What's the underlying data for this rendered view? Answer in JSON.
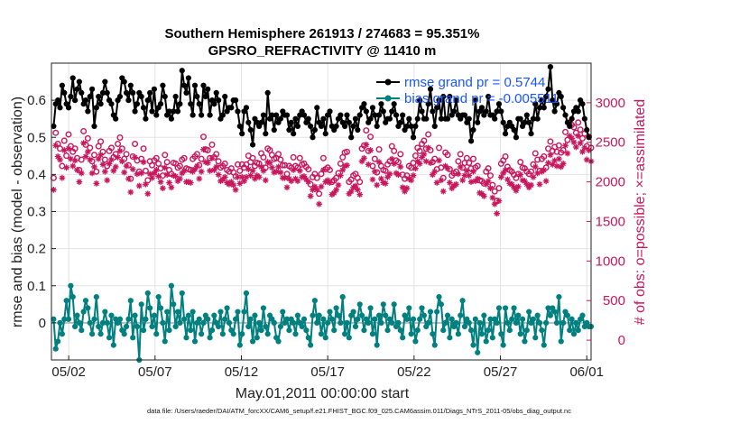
{
  "chart_data": {
    "type": "line",
    "title": "Southern Hemisphere 261913 / 274683 = 95.351%",
    "subtitle": "GPSRO_REFRACTIVITY @ 11410 m",
    "xlabel": "May.01,2011 00:00:00 start",
    "ylabel_left": "rmse and bias (model - observation)",
    "ylabel_right": "# of obs: o=possible; ×=assimilated",
    "footnote": "data file: /Users/raeder/DAI/ATM_forcXX/CAM6_setup/f.e21.FHIST_BGC.f09_025.CAM6assim.011/Diags_NTrS_2011-05/obs_diag_output.nc",
    "x_ticks": [
      "05/02",
      "05/07",
      "05/12",
      "05/17",
      "05/22",
      "05/27",
      "06/01"
    ],
    "x_tick_days": [
      1,
      6,
      11,
      16,
      21,
      26,
      31
    ],
    "xlim_days": [
      0,
      31.25
    ],
    "ylim_left": [
      -0.1,
      0.7
    ],
    "y_ticks_left": [
      "0",
      "0.1",
      "0.2",
      "0.3",
      "0.4",
      "0.5",
      "0.6"
    ],
    "ylim_right": [
      -250,
      3500
    ],
    "y_ticks_right": [
      "0",
      "500",
      "1000",
      "1500",
      "2000",
      "2500",
      "3000"
    ],
    "grid": true,
    "legend": {
      "position": "top-right",
      "entries": [
        "rmse grand pr = 0.5744",
        "bias grand pr = -0.005511"
      ]
    },
    "colors": {
      "rmse": "#000000",
      "bias": "#00807f",
      "obs": "#c8175d",
      "zero_line": "#bbbbbb",
      "grid": "#e3e3e3"
    },
    "series": [
      {
        "name": "rmse",
        "axis": "left",
        "values": [
          0.53,
          0.59,
          0.6,
          0.58,
          0.64,
          0.62,
          0.59,
          0.58,
          0.61,
          0.66,
          0.6,
          0.63,
          0.65,
          0.62,
          0.59,
          0.6,
          0.57,
          0.61,
          0.63,
          0.53,
          0.58,
          0.61,
          0.59,
          0.62,
          0.65,
          0.62,
          0.6,
          0.59,
          0.56,
          0.55,
          0.6,
          0.61,
          0.66,
          0.65,
          0.62,
          0.6,
          0.64,
          0.62,
          0.57,
          0.59,
          0.62,
          0.61,
          0.58,
          0.55,
          0.6,
          0.62,
          0.57,
          0.63,
          0.56,
          0.58,
          0.59,
          0.64,
          0.61,
          0.56,
          0.57,
          0.55,
          0.57,
          0.61,
          0.57,
          0.59,
          0.68,
          0.64,
          0.62,
          0.66,
          0.59,
          0.56,
          0.64,
          0.61,
          0.59,
          0.56,
          0.64,
          0.61,
          0.63,
          0.56,
          0.6,
          0.59,
          0.62,
          0.6,
          0.55,
          0.56,
          0.61,
          0.57,
          0.58,
          0.58,
          0.6,
          0.6,
          0.57,
          0.53,
          0.51,
          0.57,
          0.58,
          0.54,
          0.52,
          0.48,
          0.55,
          0.54,
          0.53,
          0.54,
          0.56,
          0.51,
          0.62,
          0.55,
          0.56,
          0.52,
          0.56,
          0.54,
          0.55,
          0.57,
          0.56,
          0.56,
          0.52,
          0.54,
          0.51,
          0.55,
          0.53,
          0.56,
          0.57,
          0.56,
          0.54,
          0.55,
          0.53,
          0.5,
          0.52,
          0.58,
          0.54,
          0.53,
          0.55,
          0.51,
          0.56,
          0.57,
          0.53,
          0.52,
          0.53,
          0.55,
          0.56,
          0.54,
          0.53,
          0.56,
          0.54,
          0.5,
          0.53,
          0.55,
          0.52,
          0.56,
          0.58,
          0.59,
          0.57,
          0.54,
          0.55,
          0.58,
          0.56,
          0.53,
          0.56,
          0.59,
          0.57,
          0.54,
          0.55,
          0.55,
          0.57,
          0.59,
          0.56,
          0.53,
          0.54,
          0.56,
          0.52,
          0.53,
          0.55,
          0.53,
          0.5,
          0.53,
          0.55,
          0.6,
          0.57,
          0.55,
          0.55,
          0.59,
          0.63,
          0.57,
          0.53,
          0.58,
          0.6,
          0.55,
          0.61,
          0.55,
          0.55,
          0.61,
          0.56,
          0.57,
          0.6,
          0.56,
          0.55,
          0.56,
          0.56,
          0.54,
          0.55,
          0.49,
          0.52,
          0.6,
          0.54,
          0.57,
          0.58,
          0.56,
          0.57,
          0.61,
          0.56,
          0.56,
          0.55,
          0.57,
          0.59,
          0.57,
          0.54,
          0.51,
          0.53,
          0.54,
          0.53,
          0.52,
          0.5,
          0.55,
          0.55,
          0.53,
          0.54,
          0.56,
          0.54,
          0.51,
          0.55,
          0.59,
          0.55,
          0.58,
          0.6,
          0.58,
          0.61,
          0.63,
          0.69,
          0.6,
          0.57,
          0.59,
          0.62,
          0.61,
          0.58,
          0.56,
          0.54,
          0.53,
          0.55,
          0.57,
          0.58,
          0.57,
          0.6,
          0.59,
          0.55,
          0.52,
          0.5
        ]
      },
      {
        "name": "bias",
        "axis": "left",
        "values": [
          0.01,
          -0.07,
          -0.05,
          0.0,
          -0.03,
          0.01,
          0.06,
          0.01,
          0.1,
          0.07,
          -0.01,
          0.02,
          0.0,
          -0.02,
          0.03,
          0.06,
          0.04,
          0.0,
          -0.03,
          0.01,
          0.07,
          -0.01,
          -0.03,
          0.0,
          0.03,
          0.0,
          -0.04,
          0.02,
          -0.06,
          0.01,
          0.0,
          0.01,
          -0.02,
          -0.03,
          -0.01,
          0.01,
          0.06,
          -0.04,
          0.02,
          -0.01,
          -0.1,
          0.05,
          -0.02,
          0.01,
          0.08,
          0.04,
          -0.01,
          0.02,
          -0.03,
          0.07,
          0.04,
          0.0,
          -0.05,
          0.03,
          -0.02,
          0.1,
          0.05,
          -0.01,
          0.03,
          0.0,
          0.08,
          0.01,
          -0.04,
          0.02,
          -0.02,
          0.03,
          -0.05,
          0.0,
          0.01,
          -0.03,
          0.0,
          0.02,
          0.01,
          -0.04,
          -0.02,
          0.02,
          0.0,
          -0.01,
          0.03,
          -0.03,
          0.01,
          0.04,
          0.0,
          -0.02,
          -0.03,
          0.01,
          0.03,
          -0.06,
          -0.03,
          0.03,
          0.08,
          -0.01,
          0.01,
          -0.05,
          0.02,
          -0.04,
          0.0,
          -0.02,
          0.04,
          -0.01,
          -0.03,
          0.02,
          0.01,
          0.0,
          -0.04,
          -0.05,
          -0.01,
          0.03,
          0.0,
          0.01,
          -0.02,
          0.01,
          0.0,
          -0.03,
          0.02,
          0.0,
          -0.01,
          0.01,
          -0.02,
          -0.04,
          -0.06,
          0.02,
          0.06,
          0.0,
          0.02,
          -0.03,
          0.01,
          -0.04,
          0.0,
          0.03,
          0.01,
          -0.02,
          0.04,
          0.02,
          0.0,
          0.07,
          -0.03,
          0.0,
          -0.04,
          0.02,
          0.03,
          -0.01,
          0.01,
          0.05,
          0.02,
          -0.02,
          0.01,
          0.0,
          0.04,
          -0.03,
          0.01,
          -0.06,
          0.02,
          0.0,
          0.05,
          0.02,
          -0.02,
          0.01,
          0.0,
          0.05,
          -0.01,
          0.0,
          -0.02,
          -0.04,
          0.02,
          0.01,
          0.04,
          -0.03,
          0.01,
          -0.05,
          -0.02,
          0.01,
          0.04,
          0.02,
          -0.01,
          0.0,
          0.03,
          -0.03,
          -0.06,
          0.03,
          0.07,
          0.05,
          -0.02,
          0.0,
          0.02,
          -0.04,
          0.01,
          -0.01,
          0.0,
          -0.03,
          0.02,
          0.06,
          -0.01,
          0.01,
          0.0,
          -0.02,
          -0.06,
          0.01,
          -0.08,
          0.0,
          -0.03,
          0.02,
          -0.05,
          -0.02,
          0.01,
          -0.04,
          0.01,
          0.0,
          0.04,
          -0.03,
          -0.06,
          0.04,
          0.0,
          -0.02,
          0.01,
          0.04,
          0.0,
          0.02,
          -0.03,
          0.01,
          -0.05,
          -0.02,
          0.03,
          0.0,
          0.01,
          -0.04,
          0.02,
          0.0,
          -0.02,
          -0.06,
          0.0,
          0.04,
          0.02,
          0.04,
          0.03,
          0.0,
          0.07,
          -0.05,
          0.0,
          0.03,
          0.02,
          -0.02,
          0.01,
          -0.03,
          0.0,
          -0.02,
          0.01,
          0.02,
          -0.01,
          0.0,
          -0.01,
          -0.01
        ]
      },
      {
        "name": "obs possible",
        "axis": "right",
        "values": [
          2050,
          2620,
          2480,
          2420,
          2200,
          2520,
          2330,
          2600,
          2450,
          2380,
          2420,
          2300,
          2150,
          2280,
          2640,
          2470,
          2550,
          2430,
          2260,
          2340,
          2130,
          2450,
          2510,
          2380,
          2280,
          2200,
          2390,
          2430,
          2310,
          2350,
          2480,
          2560,
          2420,
          2290,
          2350,
          2210,
          2040,
          2320,
          2480,
          2270,
          2130,
          2290,
          2420,
          2140,
          2020,
          2260,
          2210,
          2270,
          2300,
          2230,
          2170,
          2080,
          2340,
          2250,
          2150,
          2100,
          2240,
          2230,
          2180,
          2200,
          2280,
          2300,
          2170,
          2160,
          2150,
          2290,
          2320,
          2350,
          2210,
          2290,
          2570,
          2410,
          2400,
          2300,
          2470,
          2310,
          2350,
          2260,
          2180,
          2200,
          2230,
          2150,
          2130,
          2170,
          2120,
          2070,
          2220,
          2140,
          2220,
          2180,
          2220,
          2330,
          2250,
          2300,
          2200,
          2240,
          2230,
          2360,
          2310,
          2180,
          2420,
          2400,
          2340,
          2290,
          2300,
          2350,
          2280,
          2210,
          2210,
          2100,
          2200,
          2180,
          2310,
          2200,
          2180,
          2300,
          2220,
          2230,
          2190,
          2160,
          1970,
          2060,
          2100,
          2050,
          1850,
          2100,
          2300,
          2160,
          2180,
          2150,
          2000,
          2020,
          2050,
          2110,
          2230,
          2310,
          2370,
          2380,
          2000,
          2030,
          2080,
          2100,
          2050,
          2000,
          2420,
          2460,
          2650,
          2390,
          2570,
          2200,
          2290,
          2120,
          2410,
          2200,
          2150,
          2140,
          2220,
          2260,
          2450,
          2390,
          2270,
          2250,
          2350,
          2090,
          2040,
          2080,
          2200,
          2180,
          2240,
          2330,
          2430,
          2390,
          2480,
          2520,
          2420,
          2600,
          2400,
          2250,
          2290,
          2160,
          2430,
          2180,
          2050,
          2370,
          2340,
          2160,
          2080,
          2110,
          2130,
          2260,
          2350,
          2180,
          2240,
          2300,
          2240,
          2170,
          2290,
          2180,
          2200,
          2020,
          2010,
          1980,
          2130,
          2170,
          2080,
          1960,
          1880,
          1760,
          1920,
          2230,
          2270,
          2320,
          2190,
          2150,
          2130,
          2090,
          2050,
          2100,
          2250,
          2180,
          2170,
          2130,
          2100,
          2130,
          2220,
          2360,
          2280,
          2140,
          2290,
          2320,
          2180,
          2420,
          2510,
          2390,
          2440,
          2380,
          2460,
          2370,
          2400,
          2630,
          2530,
          2750,
          2720,
          2690,
          2620,
          2750,
          2660,
          2550,
          2610,
          2450,
          2570,
          2430
        ]
      },
      {
        "name": "obs assimilated",
        "axis": "right",
        "values": [
          1900,
          2460,
          2320,
          2280,
          2050,
          2400,
          2180,
          2420,
          2290,
          2200,
          2270,
          2150,
          2000,
          2110,
          2490,
          2320,
          2380,
          2280,
          2110,
          2190,
          1980,
          2290,
          2340,
          2220,
          2130,
          2020,
          2230,
          2280,
          2140,
          2190,
          2310,
          2390,
          2260,
          2120,
          2200,
          2040,
          1870,
          2160,
          2310,
          2100,
          1950,
          2110,
          2250,
          1970,
          1850,
          2100,
          2050,
          2110,
          2150,
          2070,
          2000,
          1920,
          2180,
          2090,
          1990,
          1930,
          2080,
          2070,
          2010,
          2040,
          2110,
          2140,
          2000,
          2000,
          1990,
          2130,
          2160,
          2200,
          2040,
          2130,
          2410,
          2250,
          2240,
          2140,
          2300,
          2150,
          2190,
          2090,
          2010,
          2030,
          2060,
          1990,
          1970,
          2000,
          1960,
          1900,
          2060,
          1980,
          2060,
          2010,
          2060,
          2160,
          2080,
          2140,
          2040,
          2080,
          2060,
          2190,
          2140,
          2020,
          2250,
          2240,
          2180,
          2120,
          2130,
          2190,
          2120,
          2050,
          2050,
          1930,
          2040,
          2010,
          2150,
          2040,
          2010,
          2140,
          2060,
          2070,
          2030,
          2000,
          1820,
          1900,
          1940,
          1900,
          1720,
          1940,
          2150,
          2000,
          2020,
          1990,
          1840,
          1860,
          1900,
          1960,
          2080,
          2150,
          2200,
          2210,
          1850,
          1880,
          1930,
          1950,
          1900,
          1840,
          2260,
          2300,
          2470,
          2220,
          2400,
          2030,
          2130,
          1960,
          2250,
          2040,
          1990,
          1980,
          2060,
          2100,
          2290,
          2230,
          2110,
          2090,
          2190,
          1930,
          1880,
          1920,
          2040,
          2020,
          2080,
          2170,
          2260,
          2230,
          2310,
          2350,
          2260,
          2430,
          2240,
          2090,
          2130,
          1990,
          2270,
          2020,
          1880,
          2200,
          2170,
          1990,
          1920,
          1950,
          1970,
          2100,
          2190,
          2020,
          2080,
          2140,
          2080,
          2000,
          2130,
          2010,
          2040,
          1860,
          1850,
          1820,
          1970,
          2010,
          1920,
          1800,
          1720,
          1600,
          1760,
          2060,
          2110,
          2150,
          2030,
          1980,
          1970,
          1930,
          1890,
          1940,
          2090,
          2020,
          2010,
          1970,
          1930,
          1960,
          2060,
          2190,
          2110,
          1970,
          2130,
          2150,
          2010,
          2240,
          2340,
          2220,
          2270,
          2200,
          2290,
          2190,
          2230,
          2460,
          2360,
          2580,
          2550,
          2500,
          2440,
          2580,
          2490,
          2380,
          2430,
          2280,
          2400,
          2260
        ]
      }
    ]
  }
}
